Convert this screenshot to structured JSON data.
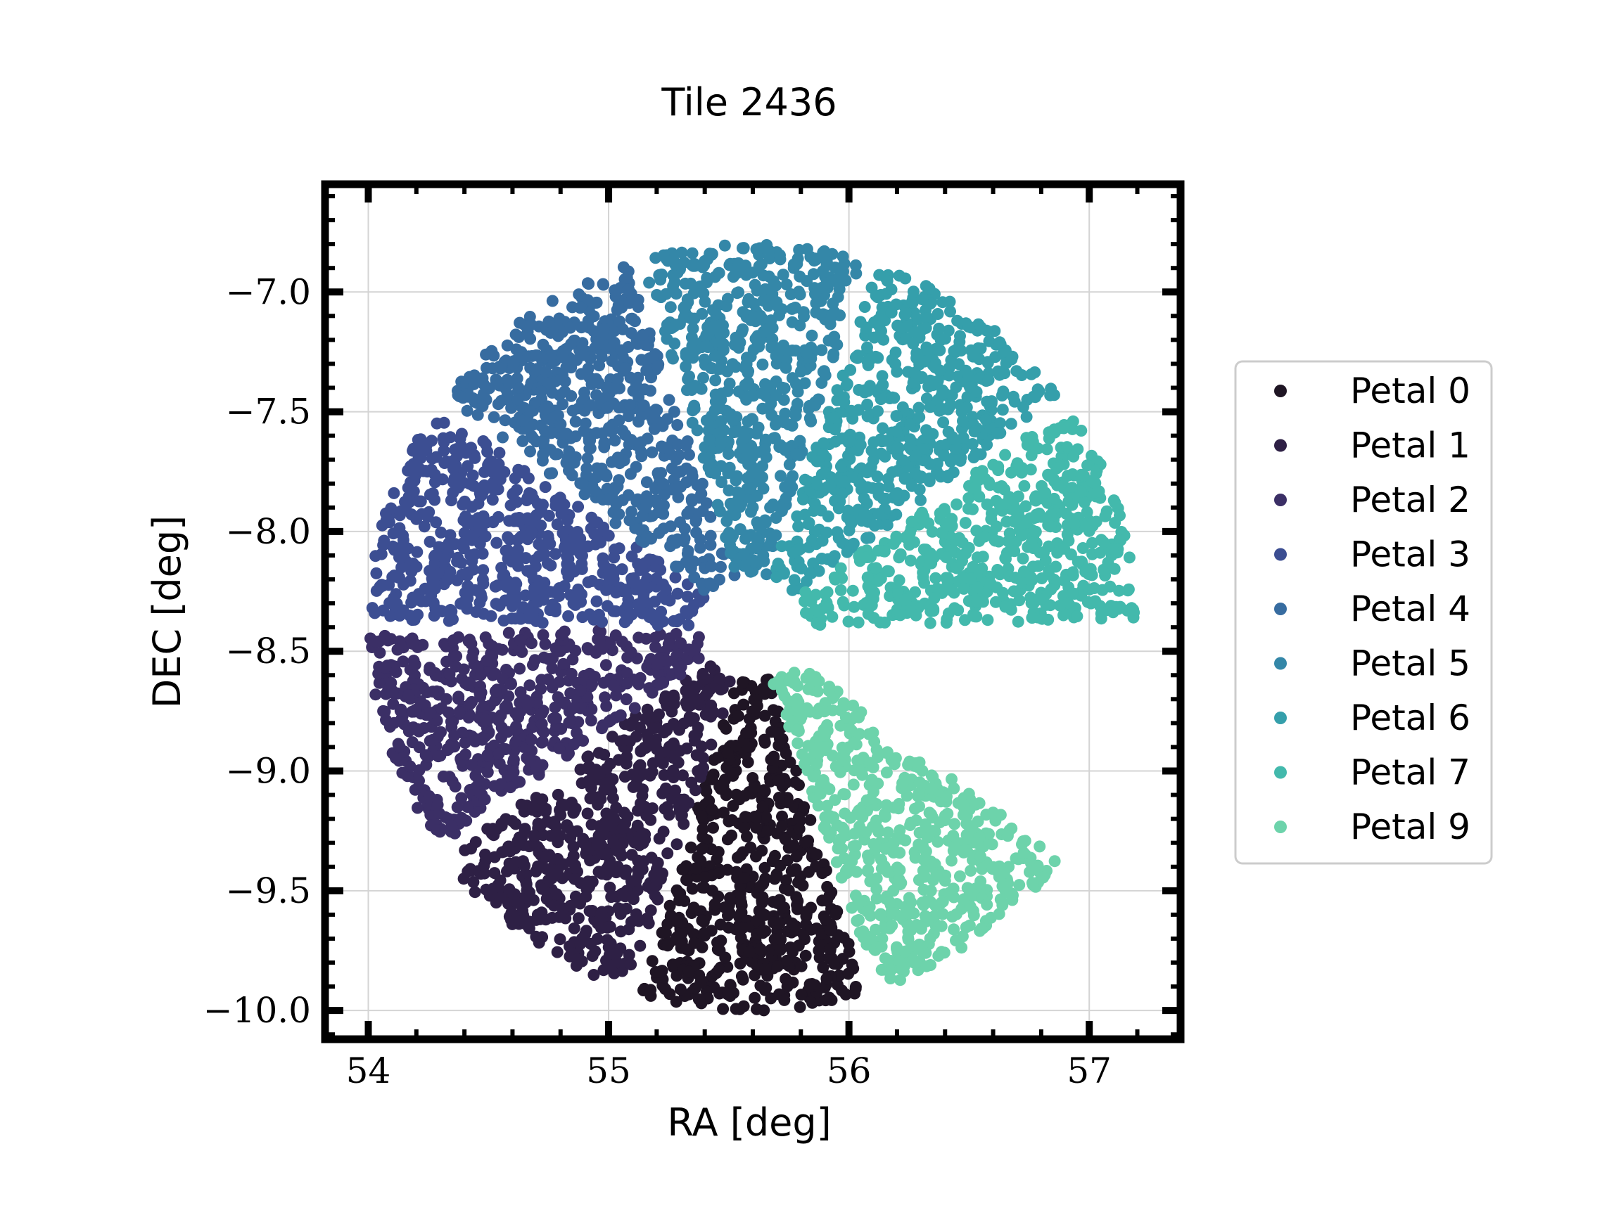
{
  "chart_data": {
    "type": "scatter",
    "title": "Tile 2436",
    "xlabel": "RA [deg]",
    "ylabel": "DEC [deg]",
    "xlim": [
      53.82,
      57.38
    ],
    "ylim": [
      -10.12,
      -6.55
    ],
    "xticks": [
      54,
      55,
      56,
      57
    ],
    "xtick_labels": [
      "54",
      "55",
      "56",
      "57"
    ],
    "yticks": [
      -7.0,
      -7.5,
      -8.0,
      -8.5,
      -9.0,
      -9.5,
      -10.0
    ],
    "ytick_labels": [
      "−7.0",
      "−7.5",
      "−8.0",
      "−8.5",
      "−9.0",
      "−9.5",
      "−10.0"
    ],
    "grid": true,
    "legend_position": "right, outside plot",
    "field_center": {
      "ra": 55.6,
      "dec": -8.4
    },
    "series": [
      {
        "name": "Petal 0",
        "color": "#1f1524",
        "angle_start_deg": 252,
        "angle_end_deg": 288
      },
      {
        "name": "Petal 1",
        "color": "#2e2045",
        "angle_start_deg": 216,
        "angle_end_deg": 252
      },
      {
        "name": "Petal 2",
        "color": "#3b2f66",
        "angle_start_deg": 180,
        "angle_end_deg": 216
      },
      {
        "name": "Petal 3",
        "color": "#3c4e92",
        "angle_start_deg": 144,
        "angle_end_deg": 180
      },
      {
        "name": "Petal 4",
        "color": "#376ca0",
        "angle_start_deg": 108,
        "angle_end_deg": 144
      },
      {
        "name": "Petal 5",
        "color": "#3487a8",
        "angle_start_deg": 72,
        "angle_end_deg": 108
      },
      {
        "name": "Petal 6",
        "color": "#359fab",
        "angle_start_deg": 36,
        "angle_end_deg": 72
      },
      {
        "name": "Petal 7",
        "color": "#43b9ac",
        "angle_start_deg": 0,
        "angle_end_deg": 36
      },
      {
        "name": "Petal 9",
        "color": "#6dd3ab",
        "angle_start_deg": 288,
        "angle_end_deg": 324
      }
    ]
  }
}
